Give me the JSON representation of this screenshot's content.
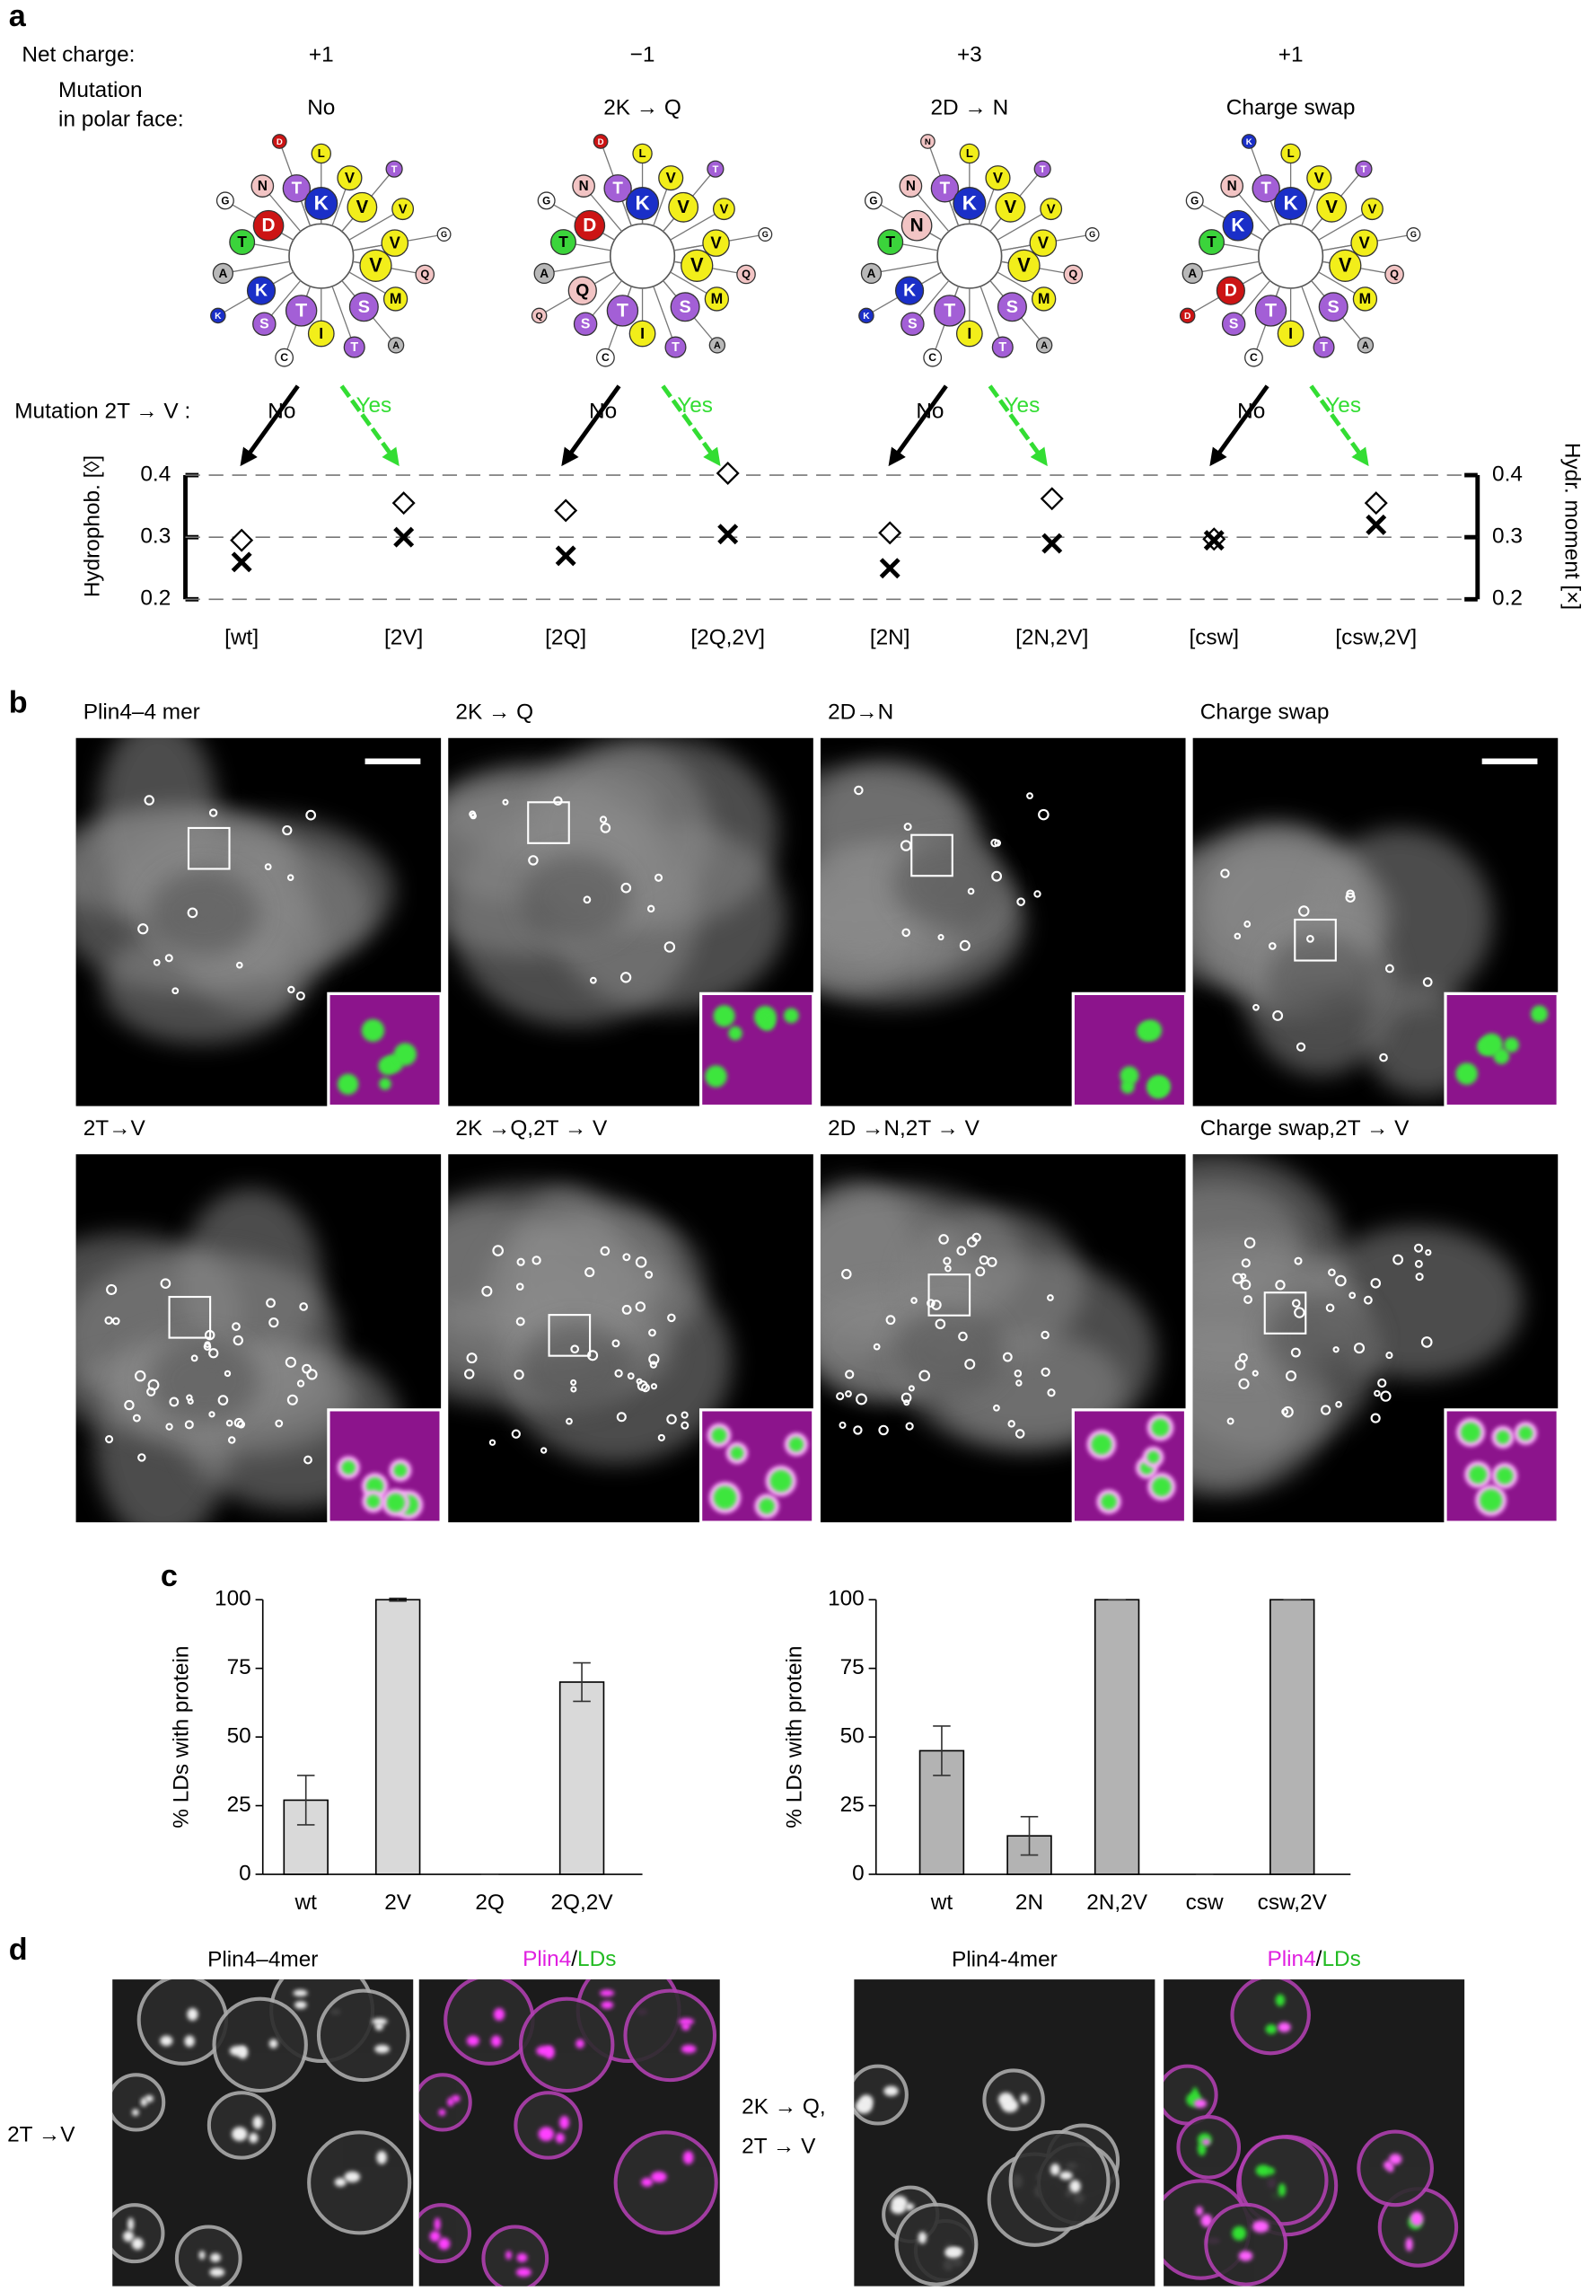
{
  "panel_labels": [
    "a",
    "b",
    "c",
    "d"
  ],
  "panel_a": {
    "row_labels": {
      "net_charge": "Net charge:",
      "mutation": [
        "Mutation",
        "in polar face:"
      ],
      "mutation_2tv": "Mutation 2T → V :"
    },
    "columns": [
      {
        "net_charge": "+1",
        "mutation": "No",
        "no": "No",
        "yes": "Yes",
        "residues": [
          "K",
          "V",
          "T",
          "D",
          "V",
          "S",
          "K",
          "T",
          "V",
          "I",
          "T",
          "V",
          "M",
          "S",
          "N",
          "V",
          "T",
          "A",
          "L",
          "Q",
          "C",
          "G",
          "T",
          "A",
          "K",
          "D",
          "G"
        ],
        "colors": [
          "#1a2fc8",
          "#f2ee1a",
          "#a35fd6",
          "#cc1414",
          "#f2ee1a",
          "#a35fd6",
          "#1a2fc8",
          "#a35fd6",
          "#f2ee1a",
          "#f2ee1a",
          "#3bd43b",
          "#f2ee1a",
          "#f2ee1a",
          "#a35fd6",
          "#f2c4c4",
          "#f2ee1a",
          "#a35fd6",
          "#b8b8b8",
          "#f2ee1a",
          "#f2c4c4",
          "#ffffff",
          "#ffffff",
          "#a35fd6",
          "#b8b8b8",
          "#1a2fc8",
          "#cc1414",
          "#ffffff"
        ]
      },
      {
        "net_charge": "−1",
        "mutation": "2K → Q",
        "no": "No",
        "yes": "Yes",
        "residues": [
          "K",
          "V",
          "T",
          "D",
          "V",
          "S",
          "Q",
          "T",
          "V",
          "I",
          "T",
          "V",
          "M",
          "S",
          "N",
          "V",
          "T",
          "A",
          "L",
          "Q",
          "C",
          "G",
          "T",
          "A",
          "Q",
          "D",
          "G"
        ],
        "colors": [
          "#1a2fc8",
          "#f2ee1a",
          "#a35fd6",
          "#cc1414",
          "#f2ee1a",
          "#a35fd6",
          "#f2c4c4",
          "#a35fd6",
          "#f2ee1a",
          "#f2ee1a",
          "#3bd43b",
          "#f2ee1a",
          "#f2ee1a",
          "#a35fd6",
          "#f2c4c4",
          "#f2ee1a",
          "#a35fd6",
          "#b8b8b8",
          "#f2ee1a",
          "#f2c4c4",
          "#ffffff",
          "#ffffff",
          "#a35fd6",
          "#b8b8b8",
          "#f2c4c4",
          "#cc1414",
          "#ffffff"
        ]
      },
      {
        "net_charge": "+3",
        "mutation": "2D → N",
        "no": "No",
        "yes": "Yes",
        "residues": [
          "K",
          "V",
          "T",
          "N",
          "V",
          "S",
          "K",
          "T",
          "V",
          "I",
          "T",
          "V",
          "M",
          "S",
          "N",
          "V",
          "T",
          "A",
          "L",
          "Q",
          "C",
          "G",
          "T",
          "A",
          "K",
          "N",
          "G"
        ],
        "colors": [
          "#1a2fc8",
          "#f2ee1a",
          "#a35fd6",
          "#f2c4c4",
          "#f2ee1a",
          "#a35fd6",
          "#1a2fc8",
          "#a35fd6",
          "#f2ee1a",
          "#f2ee1a",
          "#3bd43b",
          "#f2ee1a",
          "#f2ee1a",
          "#a35fd6",
          "#f2c4c4",
          "#f2ee1a",
          "#a35fd6",
          "#b8b8b8",
          "#f2ee1a",
          "#f2c4c4",
          "#ffffff",
          "#ffffff",
          "#a35fd6",
          "#b8b8b8",
          "#1a2fc8",
          "#f2c4c4",
          "#ffffff"
        ]
      },
      {
        "net_charge": "+1",
        "mutation": "Charge swap",
        "no": "No",
        "yes": "Yes",
        "residues": [
          "K",
          "V",
          "T",
          "K",
          "V",
          "S",
          "D",
          "T",
          "V",
          "I",
          "T",
          "V",
          "M",
          "S",
          "N",
          "V",
          "T",
          "A",
          "L",
          "Q",
          "C",
          "G",
          "T",
          "A",
          "D",
          "K",
          "G"
        ],
        "colors": [
          "#1a2fc8",
          "#f2ee1a",
          "#a35fd6",
          "#1a2fc8",
          "#f2ee1a",
          "#a35fd6",
          "#cc1414",
          "#a35fd6",
          "#f2ee1a",
          "#f2ee1a",
          "#3bd43b",
          "#f2ee1a",
          "#f2ee1a",
          "#a35fd6",
          "#f2c4c4",
          "#f2ee1a",
          "#a35fd6",
          "#b8b8b8",
          "#f2ee1a",
          "#f2c4c4",
          "#ffffff",
          "#ffffff",
          "#a35fd6",
          "#b8b8b8",
          "#cc1414",
          "#1a2fc8",
          "#ffffff"
        ]
      }
    ],
    "chart": {
      "type": "scatter",
      "categories": [
        "[wt]",
        "[2V]",
        "[2Q]",
        "[2Q,2V]",
        "[2N]",
        "[2N,2V]",
        "[csw]",
        "[csw,2V]"
      ],
      "ylabel": "Hydrophob. [◊]",
      "y2label": "Hydr. moment [×]",
      "series": [
        {
          "marker": "diamond",
          "color": "#000000",
          "values": [
            0.295,
            0.355,
            0.343,
            0.403,
            0.307,
            0.362,
            0.297,
            0.355
          ]
        },
        {
          "marker": "cross",
          "color": "#000000",
          "axis": "y2",
          "values": [
            0.26,
            0.3,
            0.27,
            0.305,
            0.25,
            0.29,
            0.295,
            0.32
          ]
        }
      ],
      "ylim": [
        0.2,
        0.4
      ],
      "yticks": [
        0.2,
        0.3,
        0.4
      ],
      "y2lim": [
        0.2,
        0.4
      ],
      "y2ticks": [
        0.2,
        0.3,
        0.4
      ],
      "grid": true
    }
  },
  "panel_b": {
    "images": [
      {
        "title": "Plin4–4 mer"
      },
      {
        "title": "2K → Q"
      },
      {
        "title": "2D→N"
      },
      {
        "title": "Charge swap"
      },
      {
        "title": "2T→V"
      },
      {
        "title": "2K →Q,2T → V"
      },
      {
        "title": "2D →N,2T → V"
      },
      {
        "title": "Charge swap,2T → V"
      }
    ]
  },
  "panel_c": {
    "charts": [
      {
        "type": "bar",
        "ylabel": "% LDs with protein",
        "categories": [
          "wt",
          "2V",
          "2Q",
          "2Q,2V"
        ],
        "values": [
          27,
          100,
          0,
          70
        ],
        "errors": [
          9,
          0.5,
          0,
          7
        ],
        "color": "#d9d9d9",
        "ylim": [
          0,
          100
        ],
        "yticks": [
          0,
          25,
          50,
          75,
          100
        ]
      },
      {
        "type": "bar",
        "ylabel": "% LDs with protein",
        "categories": [
          "wt",
          "2N",
          "2N,2V",
          "csw",
          "csw,2V"
        ],
        "values": [
          45,
          14,
          100,
          0,
          100
        ],
        "errors": [
          9,
          7,
          0,
          0,
          0
        ],
        "color": "#b3b3b3",
        "ylim": [
          0,
          100
        ],
        "yticks": [
          0,
          25,
          50,
          75,
          100
        ]
      }
    ]
  },
  "panel_d": {
    "groups": [
      {
        "row_label": [
          "2T →V"
        ],
        "gray_title": "Plin4–4mer",
        "merge_title": {
          "parts": [
            "Plin4",
            "/",
            "LDs"
          ],
          "colors": [
            "#e020e0",
            "#000000",
            "#22bb22"
          ]
        }
      },
      {
        "row_label": [
          "2K → Q,",
          "2T → V"
        ],
        "gray_title": "Plin4-4mer",
        "merge_title": {
          "parts": [
            "Plin4",
            "/",
            "LDs"
          ],
          "colors": [
            "#e020e0",
            "#000000",
            "#22bb22"
          ]
        }
      }
    ]
  }
}
